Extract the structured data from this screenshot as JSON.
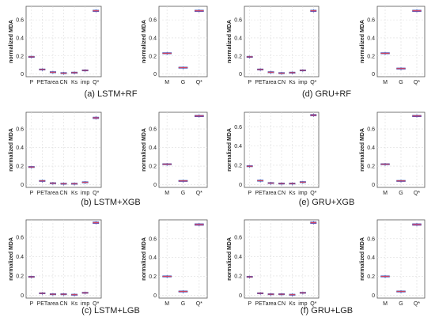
{
  "colors": {
    "box_fill": "#b55db5",
    "box_edge": "#3344aa",
    "median": "#e23b3b",
    "grid": "#dddddd",
    "axis": "#555555"
  },
  "chart_data": [
    {
      "id": "lstm_rf_a",
      "type": "box",
      "caption": "(a) LSTM+RF",
      "ylabel": "normalized MDA",
      "ylim": [
        -0.03,
        0.75
      ],
      "yticks": [
        0,
        0.2,
        0.4,
        0.6
      ],
      "categories": [
        "P",
        "PET",
        "area",
        "CN",
        "Ks",
        "imp",
        "Q*"
      ],
      "values": [
        0.19,
        0.05,
        0.02,
        0.01,
        0.015,
        0.04,
        0.7
      ]
    },
    {
      "id": "lstm_rf_b",
      "type": "box",
      "caption": "",
      "ylabel": "normalized MDA",
      "ylim": [
        -0.03,
        0.75
      ],
      "yticks": [
        0,
        0.2,
        0.4,
        0.6
      ],
      "categories": [
        "M",
        "G",
        "Q*"
      ],
      "values": [
        0.23,
        0.07,
        0.7
      ]
    },
    {
      "id": "gru_rf_a",
      "type": "box",
      "caption": "(d) GRU+RF",
      "ylabel": "normalized MDA",
      "ylim": [
        -0.03,
        0.75
      ],
      "yticks": [
        0,
        0.2,
        0.4,
        0.6
      ],
      "categories": [
        "P",
        "PET",
        "area",
        "CN",
        "Ks",
        "imp",
        "Q*"
      ],
      "values": [
        0.19,
        0.05,
        0.02,
        0.01,
        0.015,
        0.04,
        0.7
      ]
    },
    {
      "id": "gru_rf_b",
      "type": "box",
      "caption": "",
      "ylabel": "normalized MDA",
      "ylim": [
        -0.03,
        0.75
      ],
      "yticks": [
        0,
        0.2,
        0.4,
        0.6
      ],
      "categories": [
        "M",
        "G",
        "Q*"
      ],
      "values": [
        0.23,
        0.06,
        0.7
      ]
    },
    {
      "id": "lstm_xgb_a",
      "type": "box",
      "caption": "(b) LSTM+XGB",
      "ylabel": "normalized MDA",
      "ylim": [
        -0.03,
        0.78
      ],
      "yticks": [
        0,
        0.2,
        0.4,
        0.6
      ],
      "categories": [
        "P",
        "PET",
        "area",
        "CN",
        "Ks",
        "imp",
        "Q*"
      ],
      "values": [
        0.19,
        0.04,
        0.015,
        0.01,
        0.01,
        0.025,
        0.72
      ]
    },
    {
      "id": "lstm_xgb_b",
      "type": "box",
      "caption": "",
      "ylabel": "normalized MDA",
      "ylim": [
        -0.03,
        0.78
      ],
      "yticks": [
        0,
        0.2,
        0.4,
        0.6
      ],
      "categories": [
        "M",
        "G",
        "Q*"
      ],
      "values": [
        0.22,
        0.04,
        0.74
      ]
    },
    {
      "id": "gru_xgb_a",
      "type": "box",
      "caption": "(e) GRU+XGB",
      "ylabel": "normalized MDA",
      "ylim": [
        -0.03,
        0.75
      ],
      "yticks": [
        0,
        0.2,
        0.4,
        0.6
      ],
      "categories": [
        "P",
        "PET",
        "area",
        "CN",
        "Ks",
        "imp",
        "Q*"
      ],
      "values": [
        0.19,
        0.04,
        0.015,
        0.01,
        0.01,
        0.025,
        0.72
      ]
    },
    {
      "id": "gru_xgb_b",
      "type": "box",
      "caption": "",
      "ylabel": "normalized MDA",
      "ylim": [
        -0.03,
        0.78
      ],
      "yticks": [
        0,
        0.2,
        0.4,
        0.6
      ],
      "categories": [
        "M",
        "G",
        "Q*"
      ],
      "values": [
        0.22,
        0.04,
        0.74
      ]
    },
    {
      "id": "lstm_lgb_a",
      "type": "box",
      "caption": "(c) LSTM+LGB",
      "ylabel": "normalized MDA",
      "ylim": [
        -0.03,
        0.78
      ],
      "yticks": [
        0,
        0.2,
        0.4,
        0.6
      ],
      "categories": [
        "P",
        "PET",
        "area",
        "CN",
        "Ks",
        "imp",
        "Q*"
      ],
      "values": [
        0.19,
        0.02,
        0.01,
        0.01,
        0.005,
        0.025,
        0.75
      ]
    },
    {
      "id": "lstm_lgb_b",
      "type": "box",
      "caption": "",
      "ylabel": "normalized MDA",
      "ylim": [
        -0.03,
        0.8
      ],
      "yticks": [
        0,
        0.2,
        0.4,
        0.6
      ],
      "categories": [
        "M",
        "G",
        "Q*"
      ],
      "values": [
        0.2,
        0.04,
        0.75
      ]
    },
    {
      "id": "gru_lgb_a",
      "type": "box",
      "caption": "(f) GRU+LGB",
      "ylabel": "normalized MDA",
      "ylim": [
        -0.03,
        0.78
      ],
      "yticks": [
        0,
        0.2,
        0.4,
        0.6
      ],
      "categories": [
        "P",
        "PET",
        "area",
        "CN",
        "Ks",
        "imp",
        "Q*"
      ],
      "values": [
        0.19,
        0.02,
        0.01,
        0.01,
        0.005,
        0.025,
        0.75
      ]
    },
    {
      "id": "gru_lgb_b",
      "type": "box",
      "caption": "",
      "ylabel": "normalized MDA",
      "ylim": [
        -0.03,
        0.8
      ],
      "yticks": [
        0,
        0.2,
        0.4,
        0.6
      ],
      "categories": [
        "M",
        "G",
        "Q*"
      ],
      "values": [
        0.2,
        0.04,
        0.75
      ]
    }
  ]
}
